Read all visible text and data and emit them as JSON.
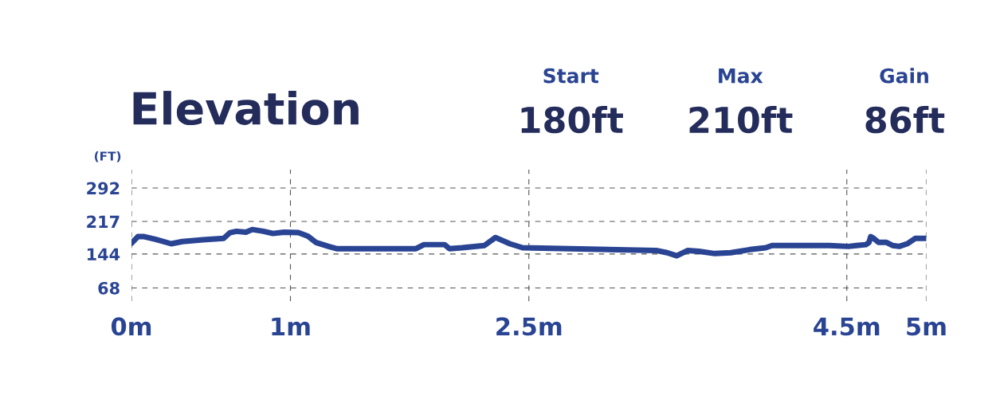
{
  "chart_data": {
    "type": "line",
    "title": "Elevation",
    "ylabel": "(FT)",
    "annotations": [
      "Start",
      "180ft",
      "Max",
      "210ft",
      "Gain",
      "86ft"
    ],
    "x": [
      0,
      0.04,
      0.08,
      0.15,
      0.25,
      0.32,
      0.45,
      0.58,
      0.62,
      0.66,
      0.72,
      0.76,
      0.83,
      0.89,
      0.96,
      1.05,
      1.11,
      1.16,
      1.24,
      1.29,
      1.79,
      1.84,
      1.97,
      2.0,
      2.08,
      2.22,
      2.29,
      2.38,
      2.46,
      3.3,
      3.37,
      3.43,
      3.5,
      3.57,
      3.67,
      3.77,
      3.89,
      3.99,
      4.03,
      4.39,
      4.51,
      4.56,
      4.62,
      4.64,
      4.65,
      4.67,
      4.7,
      4.75,
      4.79,
      4.83,
      4.88,
      4.93,
      5.0
    ],
    "series": [
      {
        "color": "#2a4494",
        "values": [
          168,
          183,
          183,
          177,
          167,
          172,
          176,
          179,
          192,
          195,
          193,
          199,
          195,
          190,
          193,
          192,
          184,
          170,
          161,
          156,
          156,
          165,
          165,
          156,
          158,
          163,
          181,
          167,
          158,
          152,
          147,
          140,
          152,
          150,
          145,
          147,
          154,
          158,
          163,
          163,
          161,
          163,
          165,
          170,
          183,
          179,
          170,
          170,
          163,
          161,
          167,
          179,
          179
        ]
      }
    ],
    "xlim": [
      0,
      5
    ],
    "xticks": [
      {
        "value": 0,
        "label": "0m"
      },
      {
        "value": 1,
        "label": "1m"
      },
      {
        "value": 2.5,
        "label": "2.5m"
      },
      {
        "value": 4.5,
        "label": "4.5m"
      },
      {
        "value": 5,
        "label": "5m"
      }
    ],
    "ylim": [
      38,
      333
    ],
    "yticks": [
      68,
      144,
      217,
      292
    ],
    "grid": true,
    "marker": "none",
    "line_style": "solid"
  }
}
